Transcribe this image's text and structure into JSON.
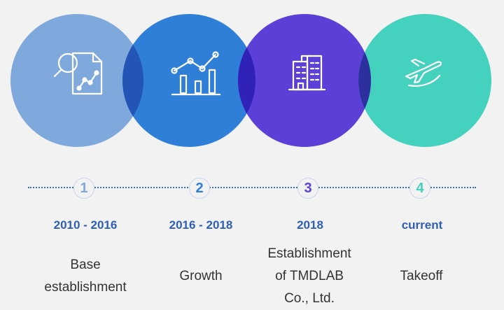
{
  "colors": {
    "circle_1": "#7fa9dd",
    "circle_2": "#2f7fd8",
    "circle_3": "#5b3fd6",
    "circle_4": "#44d1bd",
    "overlap_12": "#2455b6",
    "overlap_23": "#3022b8",
    "overlap_34": "#2d2f9e",
    "timeline": "#2f6bc4",
    "period_text": "#2f5fb3",
    "label_text": "#333333"
  },
  "steps": [
    {
      "number": "1",
      "period": "2010 - 2016",
      "label_lines": [
        "Base",
        "establishment"
      ],
      "icon": "document-analysis-icon",
      "number_color": "#7fa9dd"
    },
    {
      "number": "2",
      "period": "2016 - 2018",
      "label_lines": [
        "Growth"
      ],
      "icon": "growth-chart-icon",
      "number_color": "#2f7fd8"
    },
    {
      "number": "3",
      "period": "2018",
      "label_lines": [
        "Establishment",
        "of TMDLAB",
        "Co., Ltd."
      ],
      "icon": "building-icon",
      "number_color": "#5b3fd6"
    },
    {
      "number": "4",
      "period": "current",
      "label_lines": [
        "Takeoff"
      ],
      "icon": "airplane-takeoff-icon",
      "number_color": "#44d1bd"
    }
  ]
}
